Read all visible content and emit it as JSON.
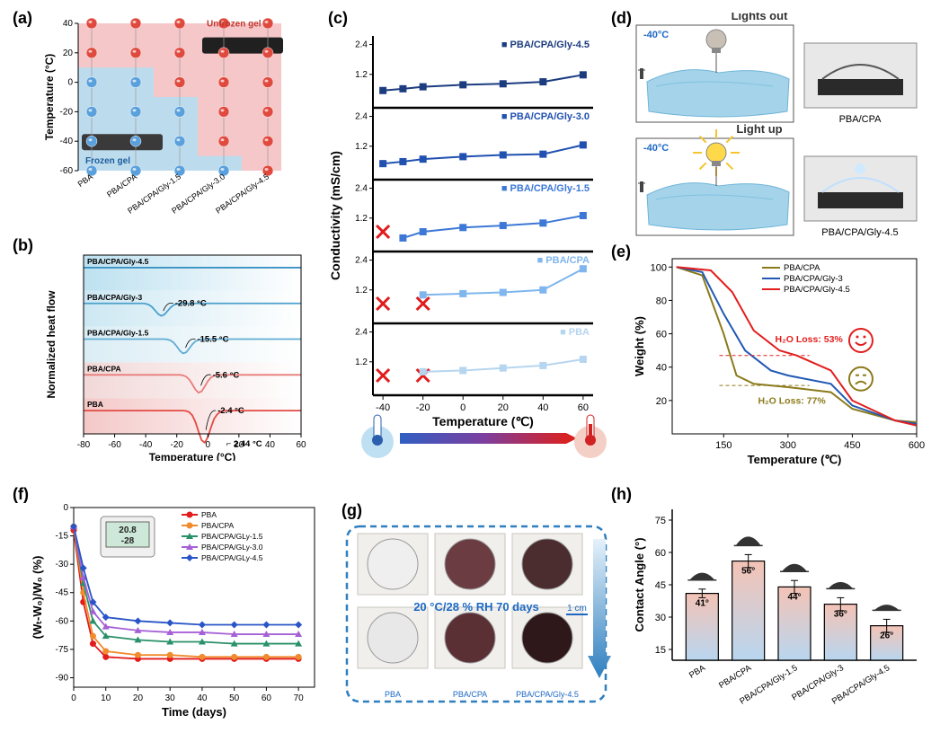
{
  "labels": {
    "a": "(a)",
    "b": "(b)",
    "c": "(c)",
    "d": "(d)",
    "e": "(e)",
    "f": "(f)",
    "g": "(g)",
    "h": "(h)"
  },
  "panel_a": {
    "type": "scatter",
    "ylabel": "Temperature (°C)",
    "yticks": [
      -60,
      -40,
      -20,
      0,
      20,
      40
    ],
    "categories": [
      "PBA",
      "PBA/CPA",
      "PBA/CPA/Gly-1.5",
      "PBA/CPA/Gly-3.0",
      "PBA/CPA/Gly-4.5"
    ],
    "points_rows": [
      40,
      20,
      0,
      -20,
      -40,
      -60
    ],
    "state_map": [
      [
        "r",
        "r",
        "r",
        "r",
        "r"
      ],
      [
        "r",
        "r",
        "r",
        "r",
        "r"
      ],
      [
        "b",
        "b",
        "r",
        "r",
        "r"
      ],
      [
        "b",
        "b",
        "b",
        "r",
        "r"
      ],
      [
        "b",
        "b",
        "b",
        "r",
        "r"
      ],
      [
        "b",
        "b",
        "b",
        "b",
        "r"
      ]
    ],
    "legend": {
      "frozen": "Frozen gel",
      "unfrozen": "Unfrozen gel"
    },
    "color_frozen_bg": "#bcdcee",
    "color_unfrozen_bg": "#f6c7c9",
    "color_frozen": "#5aa0dc",
    "color_unfrozen": "#e0493e",
    "axis_fontsize": 11,
    "tick_fontsize": 10
  },
  "panel_b": {
    "type": "line",
    "ylabel": "Normalized heat flow",
    "xlabel": "Temperature (°C)",
    "xticks": [
      -80,
      -60,
      -40,
      -20,
      0,
      20,
      40,
      60
    ],
    "series": [
      {
        "label": "PBA/CPA/Gly-4.5",
        "offset": 5,
        "dip_x": null,
        "dip_depth": 0,
        "color": "#3a92c5",
        "bg": "#bde1f0"
      },
      {
        "label": "PBA/CPA/Gly-3",
        "offset": 4,
        "dip_x": -29.8,
        "dip_depth": 0.35,
        "color": "#4ca0cc",
        "bg": "#cde8f3",
        "anno": "-29.8 °C"
      },
      {
        "label": "PBA/CPA/Gly-1.5",
        "offset": 3,
        "dip_x": -15.5,
        "dip_depth": 0.4,
        "color": "#61add3",
        "bg": "#daedf5",
        "anno": "-15.5 °C"
      },
      {
        "label": "PBA/CPA",
        "offset": 2,
        "dip_x": -5.6,
        "dip_depth": 0.5,
        "color": "#e87d7a",
        "bg": "#f2d8d8",
        "anno": "-5.6 °C"
      },
      {
        "label": "PBA",
        "offset": 1,
        "dip_x": -2.4,
        "dip_depth": 0.9,
        "color": "#e24a43",
        "bg": "#f4c8c8",
        "anno": "-2.4 °C",
        "anno2": "2.44 °C"
      }
    ],
    "axis_fontsize": 11
  },
  "panel_c": {
    "type": "line",
    "ylabel": "Conductivity (mS/cm)",
    "xlabel": "Temperature (℃)",
    "xticks": [
      -40,
      -20,
      0,
      20,
      40,
      60
    ],
    "yticks": [
      1.2,
      2.4
    ],
    "rows": [
      {
        "label": "PBA/CPA/Gly-4.5",
        "color": "#1c3c80",
        "marker": "square",
        "fail_at": [],
        "values": [
          0.55,
          0.62,
          0.7,
          0.78,
          0.82,
          0.9,
          1.18
        ]
      },
      {
        "label": "PBA/CPA/Gly-3.0",
        "color": "#2050b0",
        "marker": "square",
        "fail_at": [],
        "values": [
          0.5,
          0.58,
          0.68,
          0.78,
          0.85,
          0.88,
          1.25
        ]
      },
      {
        "label": "PBA/CPA/Gly-1.5",
        "color": "#3d78d6",
        "marker": "square",
        "fail_at": [
          0
        ],
        "values": [
          null,
          0.4,
          0.65,
          0.82,
          0.9,
          1.0,
          1.3
        ]
      },
      {
        "label": "PBA/CPA",
        "color": "#7fb6ee",
        "marker": "square",
        "fail_at": [
          0,
          1
        ],
        "values": [
          null,
          null,
          1.0,
          1.05,
          1.1,
          1.2,
          2.05
        ]
      },
      {
        "label": "PBA",
        "color": "#b6d5ef",
        "marker": "square",
        "fail_at": [
          0,
          1
        ],
        "values": [
          null,
          null,
          0.8,
          0.85,
          0.95,
          1.05,
          1.3
        ]
      }
    ],
    "fail_marker_color": "#e11b1b"
  },
  "panel_d": {
    "type": "infographic",
    "title_top": "Lights out",
    "title_bottom": "Light up",
    "temp_label": "-40°C",
    "sample_top": "PBA/CPA",
    "sample_bottom": "PBA/CPA/Gly-4.5",
    "ice_color": "#a5d4ea",
    "bulb_off": "#c8c0b5",
    "bulb_on": "#ffd94a"
  },
  "panel_e": {
    "type": "line",
    "xlabel": "Temperature (℃)",
    "ylabel": "Weight (%)",
    "xticks": [
      150,
      300,
      450,
      600
    ],
    "yticks": [
      20,
      40,
      60,
      80,
      100
    ],
    "legend": [
      {
        "label": "PBA/CPA",
        "color": "#8b7a1b"
      },
      {
        "label": "PBA/CPA/Gly-3",
        "color": "#2059b4"
      },
      {
        "label": "PBA/CPA/Gly-4.5",
        "color": "#e21e1e"
      }
    ],
    "series": {
      "PBA/CPA": {
        "x": [
          40,
          100,
          150,
          180,
          220,
          300,
          400,
          450,
          550,
          600
        ],
        "y": [
          100,
          95,
          60,
          35,
          30,
          28,
          25,
          15,
          8,
          7
        ],
        "color": "#8b7a1b"
      },
      "PBA/CPA/Gly-3": {
        "x": [
          40,
          100,
          150,
          200,
          260,
          300,
          400,
          450,
          550,
          600
        ],
        "y": [
          100,
          97,
          72,
          50,
          38,
          35,
          30,
          17,
          8,
          6
        ],
        "color": "#2059b4"
      },
      "PBA/CPA/Gly-4.5": {
        "x": [
          40,
          120,
          170,
          220,
          280,
          320,
          400,
          450,
          550,
          600
        ],
        "y": [
          100,
          98,
          85,
          62,
          50,
          47,
          38,
          20,
          8,
          5
        ],
        "color": "#e21e1e"
      }
    },
    "anno_happy": "H₂O Loss: 53%",
    "anno_happy_color": "#e21e1e",
    "anno_sad": "H₂O Loss: 77%",
    "anno_sad_color": "#8b7a1b"
  },
  "panel_f": {
    "type": "line",
    "xlabel": "Time (days)",
    "ylabel": "(Wₜ-W₀)/W₀ (%)",
    "xticks": [
      0,
      10,
      20,
      30,
      40,
      50,
      60,
      70
    ],
    "yticks": [
      -90,
      -75,
      -60,
      -45,
      -30,
      -15,
      0
    ],
    "legend": [
      {
        "label": "PBA",
        "color": "#e21b1b",
        "marker": "circle"
      },
      {
        "label": "PBA/CPA",
        "color": "#f08b2e",
        "marker": "circle"
      },
      {
        "label": "PBA/CPA/GLy-1.5",
        "color": "#29916a",
        "marker": "triangle"
      },
      {
        "label": "PBA/CPA/GLy-3.0",
        "color": "#a660d6",
        "marker": "triangle"
      },
      {
        "label": "PBA/CPA/GLy-4.5",
        "color": "#2a55c7",
        "marker": "diamond"
      }
    ],
    "x": [
      0,
      3,
      6,
      10,
      20,
      30,
      40,
      50,
      60,
      70
    ],
    "series": {
      "PBA": [
        -12,
        -50,
        -72,
        -79,
        -80,
        -80,
        -80,
        -80,
        -80,
        -80
      ],
      "PBA/CPA": [
        -10,
        -45,
        -68,
        -76,
        -78,
        -78,
        -79,
        -79,
        -79,
        -79
      ],
      "PBA/CPA/GLy-1.5": [
        -10,
        -40,
        -60,
        -68,
        -70,
        -71,
        -71,
        -72,
        -72,
        -72
      ],
      "PBA/CPA/GLy-3.0": [
        -10,
        -37,
        -55,
        -63,
        -65,
        -66,
        -66,
        -67,
        -67,
        -67
      ],
      "PBA/CPA/GLy-4.5": [
        -10,
        -32,
        -50,
        -58,
        -60,
        -61,
        -62,
        -62,
        -62,
        -62
      ]
    },
    "inset_text": [
      "20.8",
      "-28"
    ]
  },
  "panel_g": {
    "type": "infographic",
    "caption": "20 °C/28 % RH 70 days",
    "scale": "1 cm",
    "items": [
      "PBA",
      "PBA/CPA",
      "PBA/CPA/Gly-4.5"
    ],
    "border_color": "#2f7fbf",
    "disc_colors_top": [
      "#efefef",
      "#6b3d43",
      "#4b2d2f"
    ],
    "disc_colors_bottom": [
      "#e8e8e8",
      "#5b3035",
      "#2e181a"
    ]
  },
  "panel_h": {
    "type": "bar",
    "xlabel_items": [
      "PBA",
      "PBA/CPA",
      "PBA/CPA/Gly-1.5",
      "PBA/CPA/Gly-3",
      "PBA/CPA/Gly-4.5"
    ],
    "ylabel": "Contact Angle (°)",
    "yticks": [
      15,
      30,
      45,
      60,
      75
    ],
    "values": [
      41,
      56,
      44,
      36,
      26
    ],
    "errors": [
      2,
      3,
      3,
      3,
      3
    ],
    "value_labels": [
      "41°",
      "56°",
      "44°",
      "36°",
      "26°"
    ],
    "bar_fill_top": "#f4c3b6",
    "bar_fill_bottom": "#b8d6ef",
    "bar_border": "#000000",
    "drop_color": "#333333"
  }
}
